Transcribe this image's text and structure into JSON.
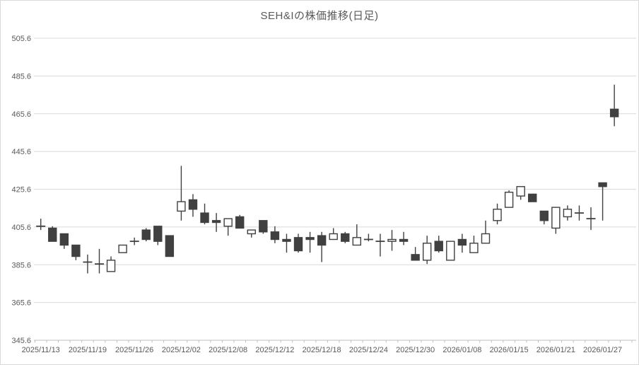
{
  "chart_data": {
    "type": "candlestick",
    "title": "SEH&Iの株価推移(日足)",
    "legend": "none",
    "grid": "horizontal",
    "y_axis": {
      "min": 345.6,
      "max": 505.6,
      "step": 20,
      "tick_labels": [
        "345.6",
        "365.6",
        "385.6",
        "405.6",
        "425.6",
        "445.6",
        "465.6",
        "485.6",
        "505.6"
      ]
    },
    "x_axis": {
      "tick_labels": [
        "2025/11/13",
        "2025/11/19",
        "2025/11/26",
        "2025/12/02",
        "2025/12/08",
        "2025/12/12",
        "2025/12/18",
        "2025/12/24",
        "2025/12/30",
        "2026/01/08",
        "2026/01/15",
        "2026/01/21",
        "2026/01/27"
      ],
      "candles_per_label": 4
    },
    "candles": [
      {
        "open": 406,
        "high": 410,
        "low": 404,
        "close": 406
      },
      {
        "open": 405,
        "high": 406,
        "low": 398,
        "close": 398
      },
      {
        "open": 402,
        "high": 402,
        "low": 394,
        "close": 396
      },
      {
        "open": 396,
        "high": 396,
        "low": 388,
        "close": 390
      },
      {
        "open": 387,
        "high": 391,
        "low": 381,
        "close": 387
      },
      {
        "open": 386,
        "high": 394,
        "low": 381,
        "close": 386
      },
      {
        "open": 382,
        "high": 390,
        "low": 382,
        "close": 388
      },
      {
        "open": 392,
        "high": 396,
        "low": 392,
        "close": 396
      },
      {
        "open": 398,
        "high": 400,
        "low": 396,
        "close": 398
      },
      {
        "open": 404,
        "high": 405,
        "low": 398,
        "close": 399
      },
      {
        "open": 406,
        "high": 406,
        "low": 396,
        "close": 398
      },
      {
        "open": 401,
        "high": 401,
        "low": 390,
        "close": 390
      },
      {
        "open": 414,
        "high": 438,
        "low": 409,
        "close": 419
      },
      {
        "open": 420,
        "high": 423,
        "low": 411,
        "close": 415
      },
      {
        "open": 413,
        "high": 418,
        "low": 407,
        "close": 408
      },
      {
        "open": 409,
        "high": 413,
        "low": 403,
        "close": 408
      },
      {
        "open": 406,
        "high": 410,
        "low": 401,
        "close": 410
      },
      {
        "open": 411,
        "high": 412,
        "low": 405,
        "close": 405
      },
      {
        "open": 402,
        "high": 404,
        "low": 400,
        "close": 404
      },
      {
        "open": 409,
        "high": 409,
        "low": 402,
        "close": 403
      },
      {
        "open": 403,
        "high": 406,
        "low": 397,
        "close": 399
      },
      {
        "open": 399,
        "high": 402,
        "low": 392,
        "close": 398
      },
      {
        "open": 400,
        "high": 402,
        "low": 392,
        "close": 393
      },
      {
        "open": 400,
        "high": 403,
        "low": 392,
        "close": 399
      },
      {
        "open": 401,
        "high": 403,
        "low": 387,
        "close": 396
      },
      {
        "open": 399,
        "high": 405,
        "low": 399,
        "close": 402
      },
      {
        "open": 402,
        "high": 403,
        "low": 397,
        "close": 398
      },
      {
        "open": 396,
        "high": 407,
        "low": 396,
        "close": 400
      },
      {
        "open": 399,
        "high": 402,
        "low": 398,
        "close": 399
      },
      {
        "open": 398,
        "high": 402,
        "low": 390,
        "close": 398
      },
      {
        "open": 398,
        "high": 404,
        "low": 393,
        "close": 399
      },
      {
        "open": 399,
        "high": 403,
        "low": 396,
        "close": 398
      },
      {
        "open": 391,
        "high": 395,
        "low": 388,
        "close": 388
      },
      {
        "open": 388,
        "high": 401,
        "low": 386,
        "close": 397
      },
      {
        "open": 398,
        "high": 401,
        "low": 392,
        "close": 393
      },
      {
        "open": 388,
        "high": 398,
        "low": 388,
        "close": 398
      },
      {
        "open": 399,
        "high": 402,
        "low": 392,
        "close": 396
      },
      {
        "open": 392,
        "high": 401,
        "low": 392,
        "close": 397
      },
      {
        "open": 397,
        "high": 409,
        "low": 397,
        "close": 402
      },
      {
        "open": 409,
        "high": 418,
        "low": 407,
        "close": 415
      },
      {
        "open": 416,
        "high": 425,
        "low": 416,
        "close": 424
      },
      {
        "open": 422,
        "high": 427,
        "low": 420,
        "close": 427
      },
      {
        "open": 423,
        "high": 423,
        "low": 419,
        "close": 419
      },
      {
        "open": 414,
        "high": 414,
        "low": 407,
        "close": 409
      },
      {
        "open": 405,
        "high": 416,
        "low": 402,
        "close": 416
      },
      {
        "open": 411,
        "high": 417,
        "low": 409,
        "close": 415
      },
      {
        "open": 413,
        "high": 417,
        "low": 409,
        "close": 413
      },
      {
        "open": 410,
        "high": 416,
        "low": 404,
        "close": 410
      },
      {
        "open": 429,
        "high": 429,
        "low": 409,
        "close": 427
      },
      {
        "open": 468,
        "high": 481,
        "low": 459,
        "close": 464
      }
    ],
    "colors": {
      "up_fill": "#ffffff",
      "down_fill": "#404040",
      "body_outline": "#404040",
      "wick": "#404040",
      "gridline": "#d9d9d9",
      "axis_line": "#bfbfbf",
      "label_text": "#595959",
      "title_text": "#595959",
      "background": "#ffffff",
      "frame_border": "#d9d9d9"
    }
  }
}
